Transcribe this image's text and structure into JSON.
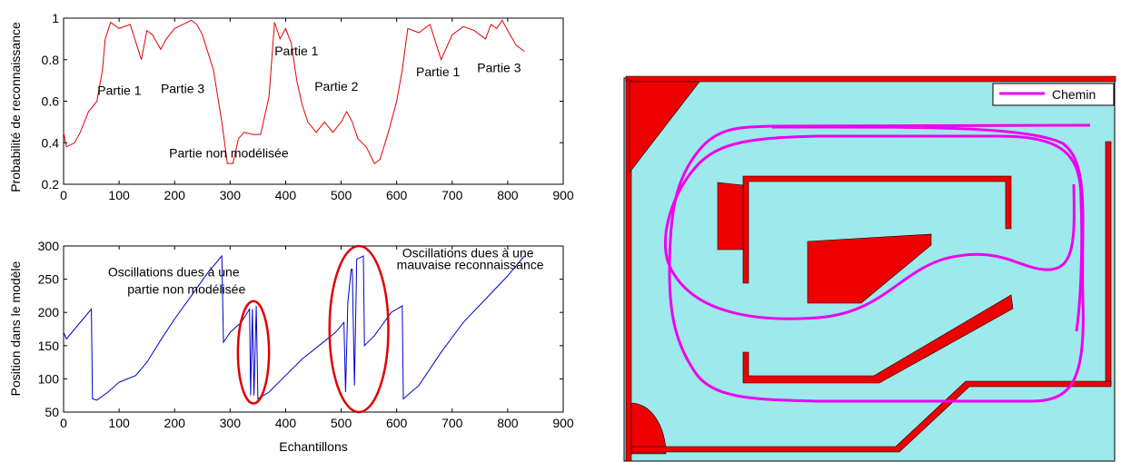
{
  "chart_data": [
    {
      "type": "line",
      "xlabel": "",
      "ylabel": "Probabilité de reconnaissance",
      "xlim": [
        0,
        900
      ],
      "ylim": [
        0.2,
        1
      ],
      "xticks": [
        "0",
        "100",
        "200",
        "300",
        "400",
        "500",
        "600",
        "700",
        "800",
        "900"
      ],
      "yticks": [
        "0.2",
        "0.4",
        "0.6",
        "0.8",
        "1"
      ],
      "series": [
        {
          "color": "#e00000",
          "points": [
            [
              0,
              0.45
            ],
            [
              5,
              0.38
            ],
            [
              20,
              0.4
            ],
            [
              30,
              0.45
            ],
            [
              45,
              0.55
            ],
            [
              60,
              0.6
            ],
            [
              70,
              0.75
            ],
            [
              75,
              0.9
            ],
            [
              85,
              0.98
            ],
            [
              100,
              0.95
            ],
            [
              120,
              0.97
            ],
            [
              140,
              0.8
            ],
            [
              150,
              0.94
            ],
            [
              160,
              0.92
            ],
            [
              175,
              0.85
            ],
            [
              185,
              0.9
            ],
            [
              200,
              0.95
            ],
            [
              215,
              0.97
            ],
            [
              230,
              0.99
            ],
            [
              240,
              0.97
            ],
            [
              250,
              0.92
            ],
            [
              270,
              0.75
            ],
            [
              285,
              0.5
            ],
            [
              295,
              0.3
            ],
            [
              305,
              0.3
            ],
            [
              315,
              0.42
            ],
            [
              325,
              0.45
            ],
            [
              340,
              0.44
            ],
            [
              355,
              0.44
            ],
            [
              370,
              0.62
            ],
            [
              380,
              0.98
            ],
            [
              390,
              0.9
            ],
            [
              400,
              0.95
            ],
            [
              410,
              0.88
            ],
            [
              420,
              0.7
            ],
            [
              430,
              0.58
            ],
            [
              440,
              0.5
            ],
            [
              455,
              0.45
            ],
            [
              470,
              0.5
            ],
            [
              485,
              0.45
            ],
            [
              500,
              0.5
            ],
            [
              510,
              0.55
            ],
            [
              520,
              0.5
            ],
            [
              530,
              0.42
            ],
            [
              545,
              0.38
            ],
            [
              560,
              0.3
            ],
            [
              570,
              0.32
            ],
            [
              585,
              0.45
            ],
            [
              600,
              0.6
            ],
            [
              610,
              0.75
            ],
            [
              620,
              0.95
            ],
            [
              640,
              0.93
            ],
            [
              660,
              0.97
            ],
            [
              680,
              0.8
            ],
            [
              700,
              0.92
            ],
            [
              720,
              0.96
            ],
            [
              740,
              0.94
            ],
            [
              760,
              0.9
            ],
            [
              770,
              0.97
            ],
            [
              780,
              0.95
            ],
            [
              790,
              0.99
            ],
            [
              800,
              0.94
            ],
            [
              815,
              0.87
            ],
            [
              830,
              0.84
            ]
          ]
        }
      ],
      "annotations": [
        {
          "text": "Partie 1",
          "x": 61,
          "y": 0.63
        },
        {
          "text": "Partie 3",
          "x": 175,
          "y": 0.64
        },
        {
          "text": "Partie non modélisée",
          "x": 190,
          "y": 0.33
        },
        {
          "text": "Partie 1",
          "x": 380,
          "y": 0.82
        },
        {
          "text": "Partie 2",
          "x": 452,
          "y": 0.65
        },
        {
          "text": "Partie 1",
          "x": 635,
          "y": 0.72
        },
        {
          "text": "Partie 3",
          "x": 745,
          "y": 0.74
        }
      ]
    },
    {
      "type": "line",
      "xlabel": "Echantillons",
      "ylabel": "Position dans le modèle",
      "xlim": [
        0,
        900
      ],
      "ylim": [
        50,
        300
      ],
      "xticks": [
        "0",
        "100",
        "200",
        "300",
        "400",
        "500",
        "600",
        "700",
        "800",
        "900"
      ],
      "yticks": [
        "50",
        "100",
        "150",
        "200",
        "250",
        "300"
      ],
      "series": [
        {
          "color": "#0000cc",
          "points": [
            [
              0,
              170
            ],
            [
              5,
              160
            ],
            [
              20,
              175
            ],
            [
              35,
              190
            ],
            [
              50,
              205
            ],
            [
              52,
              70
            ],
            [
              60,
              68
            ],
            [
              80,
              80
            ],
            [
              100,
              95
            ],
            [
              130,
              105
            ],
            [
              150,
              125
            ],
            [
              180,
              165
            ],
            [
              200,
              190
            ],
            [
              230,
              225
            ],
            [
              260,
              260
            ],
            [
              285,
              285
            ],
            [
              288,
              155
            ],
            [
              300,
              170
            ],
            [
              320,
              185
            ],
            [
              335,
              205
            ],
            [
              337,
              75
            ],
            [
              340,
              205
            ],
            [
              343,
              75
            ],
            [
              347,
              210
            ],
            [
              350,
              70
            ],
            [
              370,
              80
            ],
            [
              400,
              105
            ],
            [
              430,
              130
            ],
            [
              460,
              150
            ],
            [
              490,
              170
            ],
            [
              505,
              185
            ],
            [
              508,
              80
            ],
            [
              512,
              215
            ],
            [
              518,
              265
            ],
            [
              520,
              265
            ],
            [
              524,
              90
            ],
            [
              528,
              280
            ],
            [
              540,
              285
            ],
            [
              542,
              150
            ],
            [
              560,
              165
            ],
            [
              590,
              200
            ],
            [
              610,
              210
            ],
            [
              612,
              70
            ],
            [
              640,
              90
            ],
            [
              680,
              140
            ],
            [
              720,
              185
            ],
            [
              760,
              220
            ],
            [
              800,
              255
            ],
            [
              830,
              285
            ]
          ]
        }
      ],
      "annotations": [
        {
          "text": "Oscillations dues à une",
          "x": 80,
          "y": 254
        },
        {
          "text": "partie non modélisée",
          "x": 115,
          "y": 228
        },
        {
          "text": "Oscillations dues à une",
          "x": 610,
          "y": 283
        },
        {
          "text": "mauvaise reconnaissance",
          "x": 600,
          "y": 265
        }
      ],
      "highlights": [
        {
          "shape": "ellipse",
          "color": "#e00000",
          "x_center": 342,
          "y_center": 140,
          "x_radius": 28,
          "y_radius": 77
        },
        {
          "shape": "ellipse",
          "color": "#e00000",
          "x_center": 532,
          "y_center": 175,
          "x_radius": 53,
          "y_radius": 125
        }
      ]
    }
  ],
  "map": {
    "background_color": "#9ee9ec",
    "wall_color": "#ee0000",
    "path_color": "#ee00ee",
    "legend_label": "Chemin"
  }
}
